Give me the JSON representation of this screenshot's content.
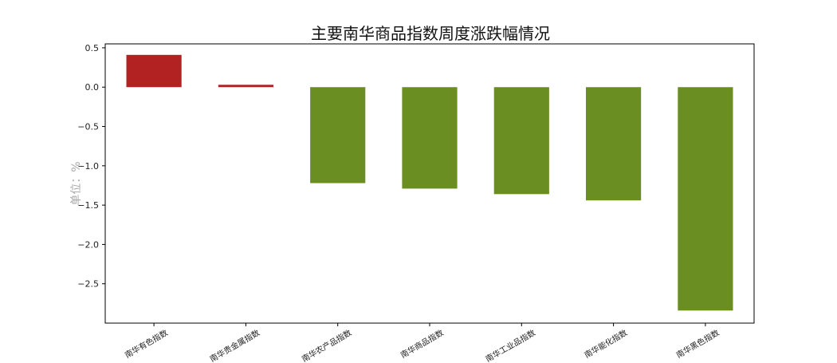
{
  "chart_data": {
    "type": "bar",
    "title": "主要南华商品指数周度涨跌幅情况",
    "ylabel": "单位：%",
    "xlabel": "",
    "categories": [
      "南华有色指数",
      "南华贵金属指数",
      "南华农产品指数",
      "南华商品指数",
      "南华工业品指数",
      "南华能化指数",
      "南华黑色指数"
    ],
    "values": [
      0.41,
      0.03,
      -1.22,
      -1.29,
      -1.36,
      -1.44,
      -2.84
    ],
    "ylim": [
      -3.0,
      0.55
    ],
    "yticks": [
      0.5,
      0.0,
      -0.5,
      -1.0,
      -1.5,
      -2.0,
      -2.5
    ],
    "ytick_labels": [
      "0.5",
      "0.0",
      "−0.5",
      "−1.0",
      "−1.5",
      "−2.0",
      "−2.5"
    ],
    "colors": {
      "positive": "#b22222",
      "negative": "#6b8e23"
    },
    "grid": false,
    "legend": "none"
  }
}
